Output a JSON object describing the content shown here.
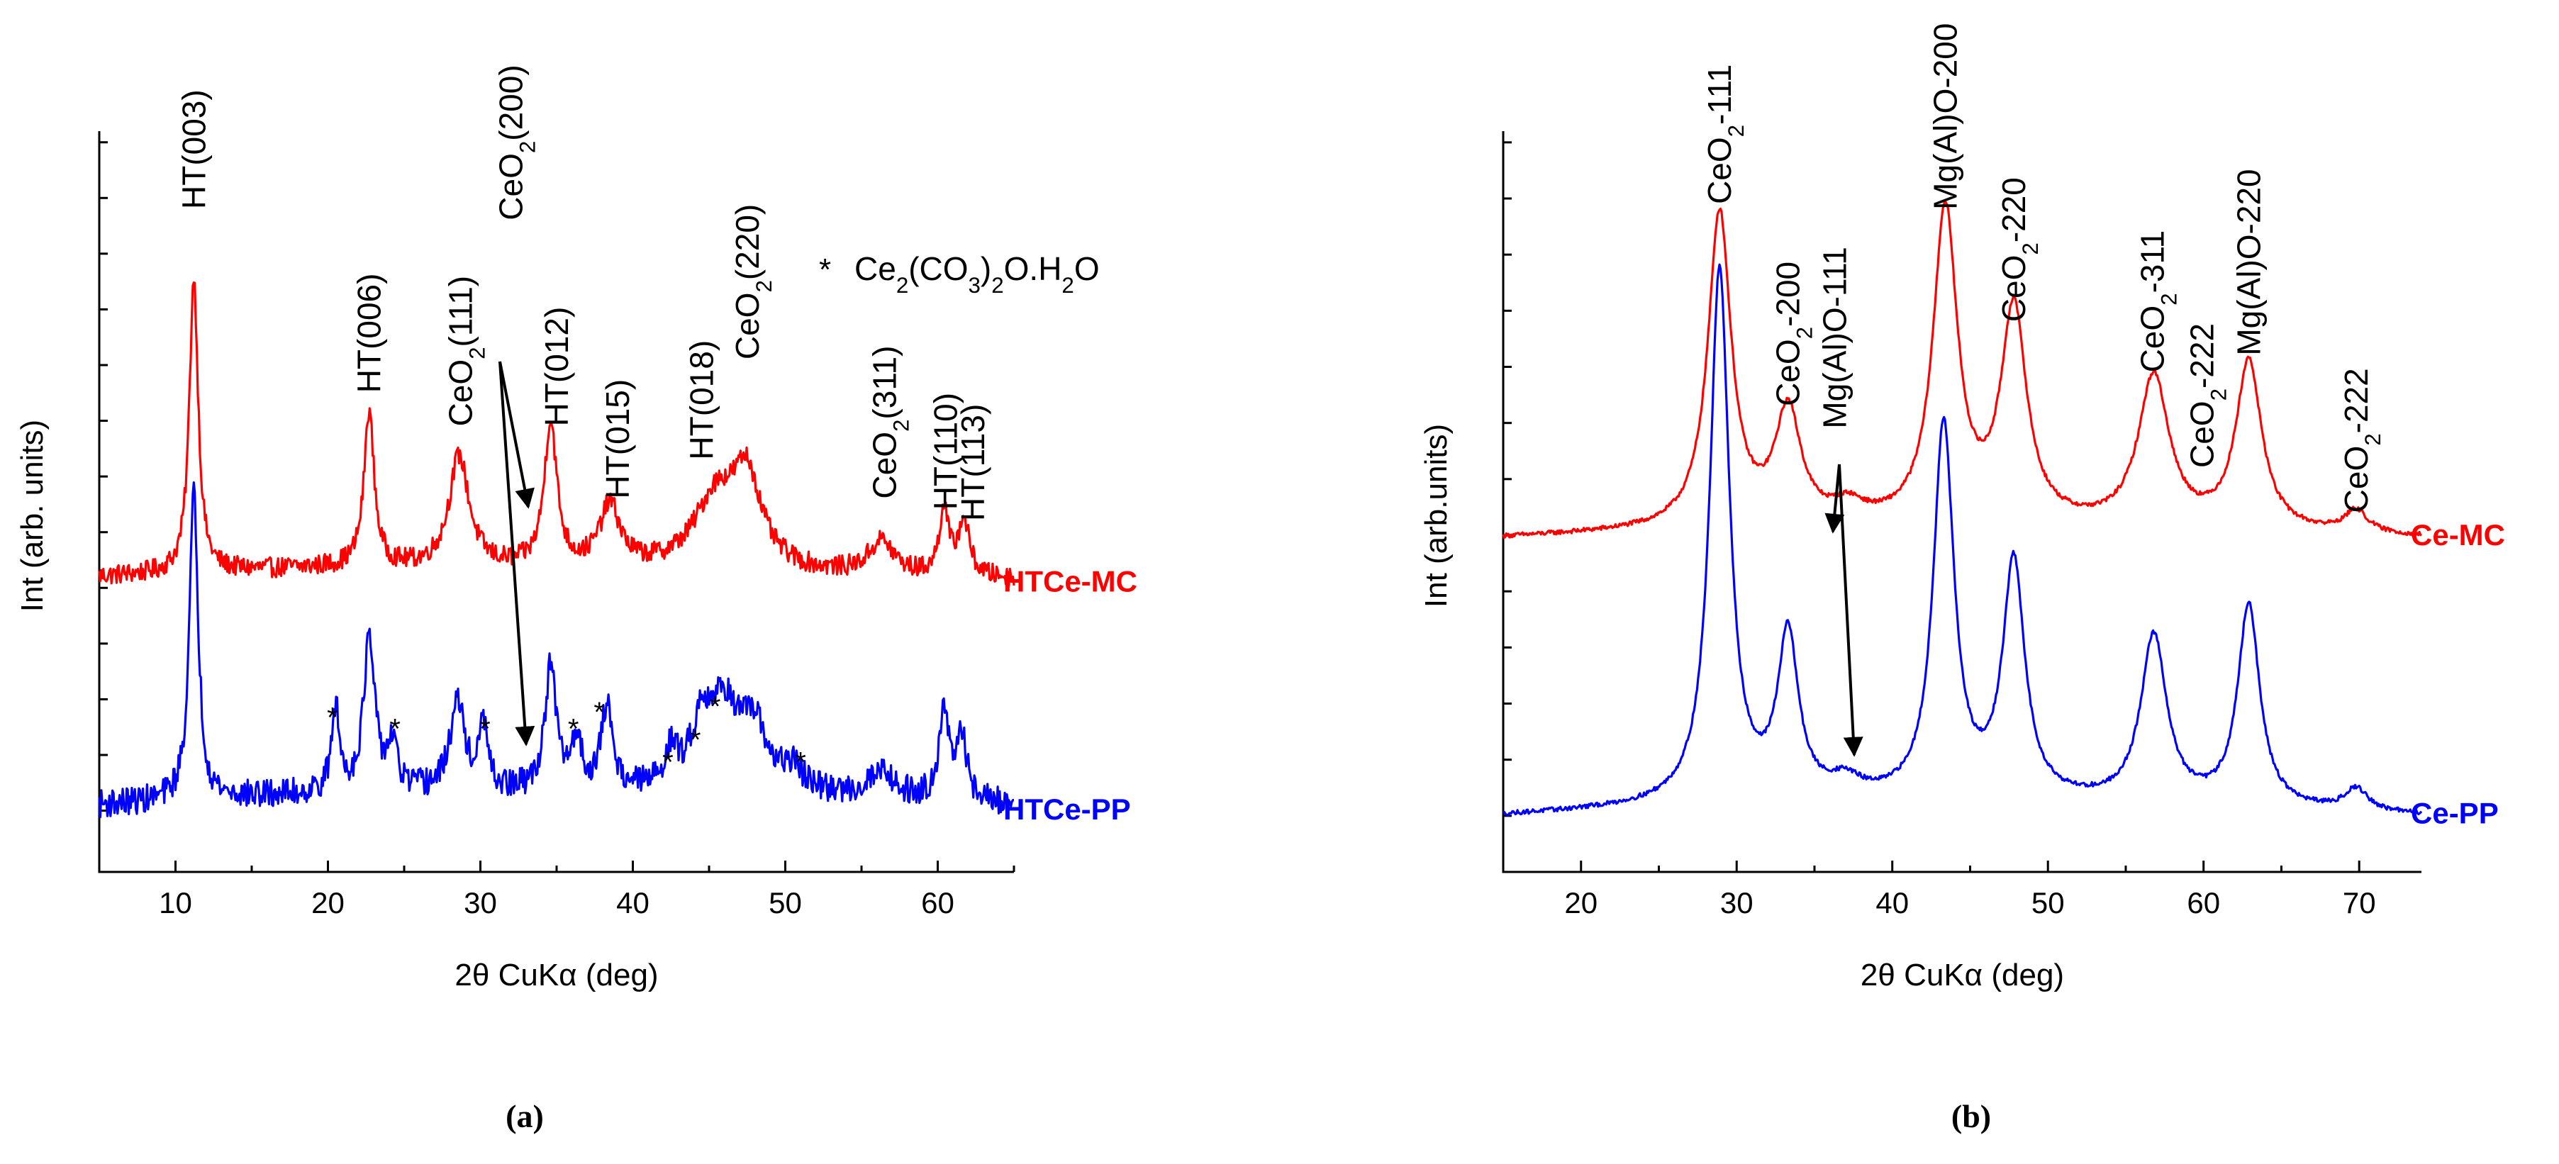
{
  "chart_data": [
    {
      "id": "a",
      "type": "line",
      "sublabel": "(a)",
      "xlabel": "2θ CuKα (deg)",
      "ylabel": "Int (arb. units)",
      "xlim": [
        5,
        65
      ],
      "xticks": [
        10,
        20,
        30,
        40,
        50,
        60
      ],
      "xtick_labels": [
        "10",
        "20",
        "30",
        "40",
        "50",
        "60"
      ],
      "legend_note": {
        "marker": "*",
        "text": "Ce2(CO3)2O.H2O"
      },
      "series": [
        {
          "name": "HTCe-MC",
          "color": "#ff0000",
          "offset": 0.4,
          "background": [
            [
              5,
              0.02
            ],
            [
              20,
              0.035
            ],
            [
              40,
              0.03
            ],
            [
              55,
              0.02
            ],
            [
              65,
              0.015
            ]
          ],
          "peaks": [
            [
              11.2,
              0.53,
              0.35
            ],
            [
              22.7,
              0.28,
              0.4
            ],
            [
              28.6,
              0.2,
              0.8
            ],
            [
              34.6,
              0.26,
              0.5
            ],
            [
              38.5,
              0.11,
              0.8
            ],
            [
              45.5,
              0.13,
              1.8
            ],
            [
              47.5,
              0.15,
              1.1
            ],
            [
              56.3,
              0.06,
              1.0
            ],
            [
              60.4,
              0.12,
              0.35
            ],
            [
              61.7,
              0.1,
              0.45
            ]
          ],
          "noise": 0.018
        },
        {
          "name": "HTCe-PP",
          "color": "#0000ff",
          "offset": 0.0,
          "background": [
            [
              5,
              0.01
            ],
            [
              20,
              0.03
            ],
            [
              40,
              0.03
            ],
            [
              55,
              0.02
            ],
            [
              65,
              0.01
            ]
          ],
          "peaks": [
            [
              11.2,
              0.55,
              0.35
            ],
            [
              20.5,
              0.15,
              0.3
            ],
            [
              22.7,
              0.27,
              0.45
            ],
            [
              24.2,
              0.08,
              0.4
            ],
            [
              28.5,
              0.16,
              0.6
            ],
            [
              30.2,
              0.12,
              0.3
            ],
            [
              34.6,
              0.22,
              0.45
            ],
            [
              36.3,
              0.09,
              0.4
            ],
            [
              38.3,
              0.15,
              0.45
            ],
            [
              42.5,
              0.06,
              0.5
            ],
            [
              44.5,
              0.1,
              0.8
            ],
            [
              46,
              0.15,
              1.3
            ],
            [
              48,
              0.1,
              1
            ],
            [
              50.5,
              0.04,
              0.8
            ],
            [
              56.3,
              0.05,
              1
            ],
            [
              60.4,
              0.16,
              0.4
            ],
            [
              61.6,
              0.11,
              0.4
            ]
          ],
          "noise": 0.025
        }
      ],
      "peak_labels": [
        {
          "text": "HT(003)",
          "x": 11.2,
          "y": 1.08
        },
        {
          "text": "HT(006)",
          "x": 22.7,
          "y": 0.75
        },
        {
          "text": "CeO2(111)",
          "x": 28.7,
          "y": 0.69
        },
        {
          "text": "CeO2(200)",
          "x": 32.0,
          "y": 1.06
        },
        {
          "text": "HT(012)",
          "x": 35.0,
          "y": 0.69
        },
        {
          "text": "HT(015)",
          "x": 39.0,
          "y": 0.56
        },
        {
          "text": "HT(018)",
          "x": 44.5,
          "y": 0.63
        },
        {
          "text": "CeO2(220)",
          "x": 47.5,
          "y": 0.81
        },
        {
          "text": "CeO2(311)",
          "x": 56.5,
          "y": 0.56
        },
        {
          "text": "HT(110)",
          "x": 60.5,
          "y": 0.54
        },
        {
          "text": "HT(113)",
          "x": 62.3,
          "y": 0.52
        }
      ],
      "asterisks": [
        {
          "x": 20.3,
          "y": 0.15
        },
        {
          "x": 24.4,
          "y": 0.13
        },
        {
          "x": 30.3,
          "y": 0.13
        },
        {
          "x": 36.1,
          "y": 0.13
        },
        {
          "x": 37.8,
          "y": 0.16
        },
        {
          "x": 42.3,
          "y": 0.07
        },
        {
          "x": 44.1,
          "y": 0.11
        },
        {
          "x": 45.4,
          "y": 0.17
        },
        {
          "x": 51.0,
          "y": 0.07
        }
      ]
    },
    {
      "id": "b",
      "type": "line",
      "sublabel": "(b)",
      "xlabel": "2θ CuKα (deg)",
      "ylabel": "Int (arb.units)",
      "xlim": [
        15,
        74
      ],
      "xticks": [
        20,
        30,
        40,
        50,
        60,
        70
      ],
      "xtick_labels": [
        "20",
        "30",
        "40",
        "50",
        "60",
        "70"
      ],
      "series": [
        {
          "name": "Ce-MC",
          "color": "#ff0000",
          "offset": 0.49,
          "background": [
            [
              15,
              0.005
            ],
            [
              30,
              0.02
            ],
            [
              50,
              0.02
            ],
            [
              74,
              0.005
            ]
          ],
          "peaks": [
            [
              28.9,
              0.56,
              0.9
            ],
            [
              33.3,
              0.2,
              1.0
            ],
            [
              37.2,
              0.03,
              1.2
            ],
            [
              43.4,
              0.56,
              0.95
            ],
            [
              47.8,
              0.38,
              1.0
            ],
            [
              56.8,
              0.27,
              1.2
            ],
            [
              62.9,
              0.3,
              1.0
            ],
            [
              69.8,
              0.04,
              0.9
            ]
          ],
          "noise": 0.004
        },
        {
          "name": "Ce-PP",
          "color": "#0000ff",
          "offset": 0.0,
          "background": [
            [
              15,
              0.0
            ],
            [
              30,
              0.02
            ],
            [
              50,
              0.02
            ],
            [
              74,
              0.0
            ]
          ],
          "peaks": [
            [
              28.9,
              0.95,
              0.75
            ],
            [
              33.3,
              0.29,
              0.8
            ],
            [
              37.0,
              0.03,
              1.2
            ],
            [
              43.3,
              0.67,
              0.8
            ],
            [
              47.8,
              0.42,
              0.85
            ],
            [
              56.8,
              0.3,
              1.0
            ],
            [
              62.9,
              0.36,
              0.85
            ],
            [
              69.8,
              0.04,
              0.9
            ]
          ],
          "noise": 0.004
        }
      ],
      "peak_labels": [
        {
          "text": "CeO2-111",
          "x": 28.9,
          "y": 1.09
        },
        {
          "text": "CeO2-200",
          "x": 33.3,
          "y": 0.73
        },
        {
          "text": "Mg(Al)O-111",
          "x": 36.3,
          "y": 0.69
        },
        {
          "text": "Mg(Al)O-200",
          "x": 43.4,
          "y": 1.08
        },
        {
          "text": "CeO2-220",
          "x": 47.8,
          "y": 0.88
        },
        {
          "text": "CeO2-311",
          "x": 56.7,
          "y": 0.79
        },
        {
          "text": "CeO2-222",
          "x": 59.9,
          "y": 0.62
        },
        {
          "text": "Mg(Al)O-220",
          "x": 62.9,
          "y": 0.82
        },
        {
          "text": "CeO2-222",
          "x": 69.8,
          "y": 0.54
        }
      ]
    }
  ]
}
